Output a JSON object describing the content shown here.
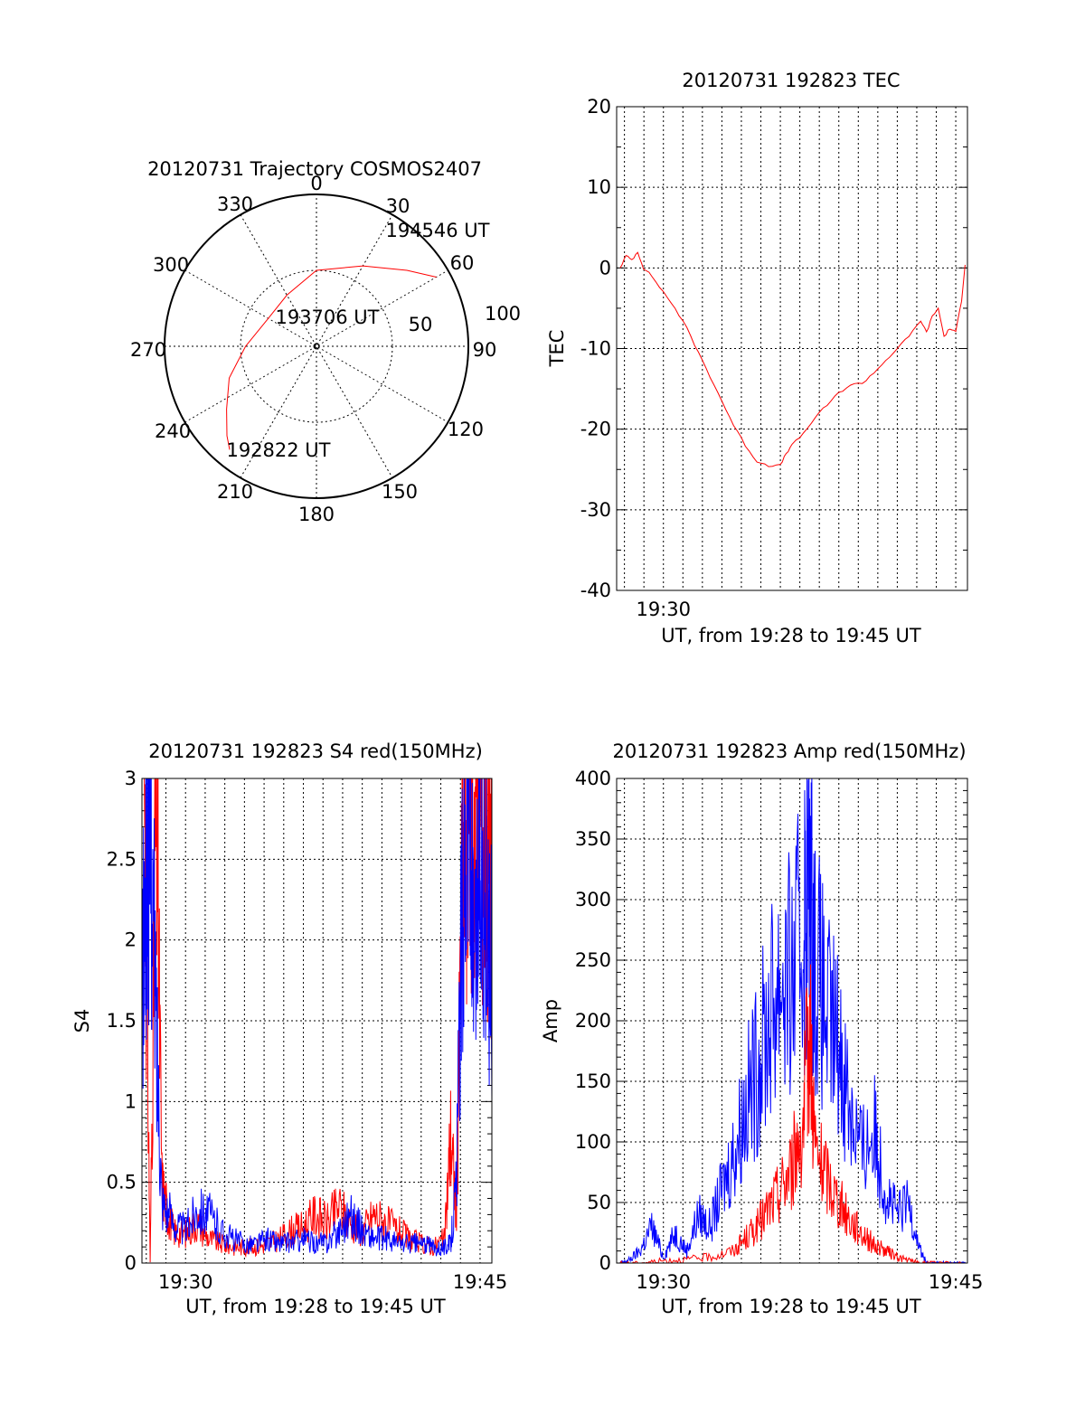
{
  "colors": {
    "red": "#ff0000",
    "blue": "#0000ff",
    "axis": "#000000"
  },
  "chart_data": [
    {
      "id": "polar",
      "type": "polar-trajectory",
      "title": "20120731 Trajectory COSMOS2407",
      "azimuth_labels": [
        "0",
        "30",
        "60",
        "90",
        "120",
        "150",
        "180",
        "210",
        "240",
        "270",
        "300",
        "330"
      ],
      "elevation_labels": [
        "50",
        "100"
      ],
      "points": [
        {
          "label": "194546 UT",
          "az": 60,
          "el": 8
        },
        {
          "label": "193706 UT",
          "az": 330,
          "el": 55
        },
        {
          "label": "192822 UT",
          "az": 220,
          "el": 10
        }
      ],
      "trajectory": [
        [
          60,
          8
        ],
        [
          50,
          20
        ],
        [
          30,
          35
        ],
        [
          0,
          45
        ],
        [
          330,
          55
        ],
        [
          300,
          57
        ],
        [
          270,
          48
        ],
        [
          250,
          35
        ],
        [
          235,
          25
        ],
        [
          225,
          15
        ],
        [
          220,
          10
        ]
      ]
    },
    {
      "id": "tec",
      "type": "line",
      "title": "20120731 192823 TEC",
      "xlabel": "UT, from 19:28 to 19:45 UT",
      "ylabel": "TEC",
      "xlim": [
        19.46,
        19.76
      ],
      "ylim": [
        -40,
        20
      ],
      "yticks": [
        20,
        10,
        0,
        -10,
        -20,
        -30,
        -40
      ],
      "xticks": [
        {
          "v": 19.5,
          "label": "19:30"
        }
      ],
      "series": [
        {
          "color": "#ff0000",
          "x": [
            19.463,
            19.468,
            19.473,
            19.478,
            19.483,
            19.49,
            19.5,
            19.51,
            19.52,
            19.53,
            19.54,
            19.55,
            19.56,
            19.57,
            19.58,
            19.59,
            19.6,
            19.605,
            19.61,
            19.62,
            19.63,
            19.64,
            19.65,
            19.66,
            19.67,
            19.68,
            19.69,
            19.7,
            19.71,
            19.72,
            19.725,
            19.73,
            19.735,
            19.74,
            19.745,
            19.75,
            19.755,
            19.758
          ],
          "y": [
            0,
            1.5,
            1,
            2,
            0,
            -1,
            -3,
            -5,
            -7.5,
            -10.5,
            -13.5,
            -16.5,
            -19.5,
            -22,
            -24,
            -24.5,
            -24.5,
            -23,
            -22,
            -20.5,
            -18.5,
            -17,
            -15.5,
            -14.5,
            -14.3,
            -13,
            -11.5,
            -10,
            -8.5,
            -6.5,
            -8,
            -6,
            -5,
            -8.5,
            -7.5,
            -8,
            -4,
            0.5
          ]
        }
      ]
    },
    {
      "id": "s4",
      "type": "line",
      "title": "20120731 192823 S4 red(150MHz)",
      "xlabel": "UT, from 19:28 to 19:45 UT",
      "ylabel": "S4",
      "xlim": [
        19.463,
        19.76
      ],
      "ylim": [
        0,
        3
      ],
      "yticks": [
        0,
        0.5,
        1,
        1.5,
        2,
        2.5,
        3
      ],
      "ytick_labels": [
        "0",
        "0.5",
        "1",
        "1.5",
        "2",
        "2.5",
        "3"
      ],
      "xticks": [
        {
          "v": 19.5,
          "label": "19:30"
        },
        {
          "v": 19.75,
          "label": "19:45"
        }
      ],
      "series": [
        {
          "color": "#ff0000",
          "x": [
            19.465,
            19.47,
            19.475,
            19.48,
            19.485,
            19.49,
            19.5,
            19.51,
            19.52,
            19.53,
            19.54,
            19.55,
            19.56,
            19.57,
            19.58,
            19.59,
            19.6,
            19.61,
            19.62,
            19.63,
            19.64,
            19.65,
            19.66,
            19.67,
            19.68,
            19.69,
            19.7,
            19.71,
            19.72,
            19.725,
            19.73,
            19.735,
            19.74,
            19.745,
            19.75,
            19.755,
            19.76
          ],
          "y": [
            3,
            0,
            3,
            0.5,
            0.3,
            0.2,
            0.18,
            0.25,
            0.15,
            0.12,
            0.1,
            0.1,
            0.1,
            0.12,
            0.15,
            0.2,
            0.22,
            0.3,
            0.25,
            0.35,
            0.25,
            0.2,
            0.3,
            0.25,
            0.2,
            0.15,
            0.12,
            0.1,
            0.15,
            0.8,
            0.3,
            2.5,
            3,
            2.8,
            3,
            2.6,
            2.5
          ]
        },
        {
          "color": "#0000ff",
          "x": [
            19.463,
            19.467,
            19.47,
            19.475,
            19.48,
            19.49,
            19.5,
            19.51,
            19.52,
            19.53,
            19.54,
            19.55,
            19.56,
            19.57,
            19.58,
            19.59,
            19.6,
            19.61,
            19.62,
            19.63,
            19.64,
            19.65,
            19.66,
            19.67,
            19.68,
            19.69,
            19.7,
            19.71,
            19.72,
            19.725,
            19.73,
            19.735,
            19.74,
            19.745,
            19.75,
            19.755,
            19.76
          ],
          "y": [
            1.6,
            2.4,
            2.8,
            1.5,
            0.4,
            0.25,
            0.2,
            0.35,
            0.3,
            0.2,
            0.15,
            0.12,
            0.12,
            0.15,
            0.12,
            0.13,
            0.15,
            0.12,
            0.13,
            0.2,
            0.3,
            0.2,
            0.15,
            0.15,
            0.12,
            0.12,
            0.12,
            0.1,
            0.1,
            0.12,
            0.5,
            2.3,
            3,
            1.6,
            2.7,
            2.1,
            1.8
          ]
        }
      ]
    },
    {
      "id": "amp",
      "type": "line",
      "title": "20120731 192823 Amp red(150MHz)",
      "xlabel": "UT, from 19:28 to 19:45 UT",
      "ylabel": "Amp",
      "xlim": [
        19.46,
        19.76
      ],
      "ylim": [
        0,
        400
      ],
      "yticks": [
        0,
        50,
        100,
        150,
        200,
        250,
        300,
        350,
        400
      ],
      "xticks": [
        {
          "v": 19.5,
          "label": "19:30"
        },
        {
          "v": 19.75,
          "label": "19:45"
        }
      ],
      "series": [
        {
          "color": "#0000ff",
          "x": [
            19.463,
            19.47,
            19.48,
            19.49,
            19.5,
            19.51,
            19.52,
            19.53,
            19.54,
            19.55,
            19.56,
            19.57,
            19.58,
            19.59,
            19.6,
            19.61,
            19.62,
            19.625,
            19.63,
            19.64,
            19.65,
            19.66,
            19.67,
            19.68,
            19.69,
            19.7,
            19.71,
            19.72,
            19.725,
            19.73,
            19.74,
            19.75,
            19.76
          ],
          "y": [
            0,
            2,
            10,
            30,
            5,
            25,
            10,
            40,
            30,
            60,
            90,
            130,
            160,
            200,
            240,
            230,
            280,
            320,
            250,
            200,
            180,
            130,
            90,
            110,
            60,
            40,
            50,
            10,
            0,
            0,
            0,
            0,
            0
          ]
        },
        {
          "color": "#ff0000",
          "x": [
            19.463,
            19.48,
            19.5,
            19.52,
            19.54,
            19.56,
            19.57,
            19.58,
            19.59,
            19.6,
            19.61,
            19.62,
            19.625,
            19.63,
            19.64,
            19.65,
            19.66,
            19.67,
            19.68,
            19.69,
            19.7,
            19.71,
            19.72,
            19.73,
            19.76
          ],
          "y": [
            0,
            0,
            2,
            3,
            5,
            10,
            20,
            30,
            45,
            60,
            80,
            120,
            200,
            90,
            70,
            50,
            35,
            25,
            15,
            10,
            5,
            2,
            0,
            0,
            0
          ]
        }
      ]
    }
  ]
}
